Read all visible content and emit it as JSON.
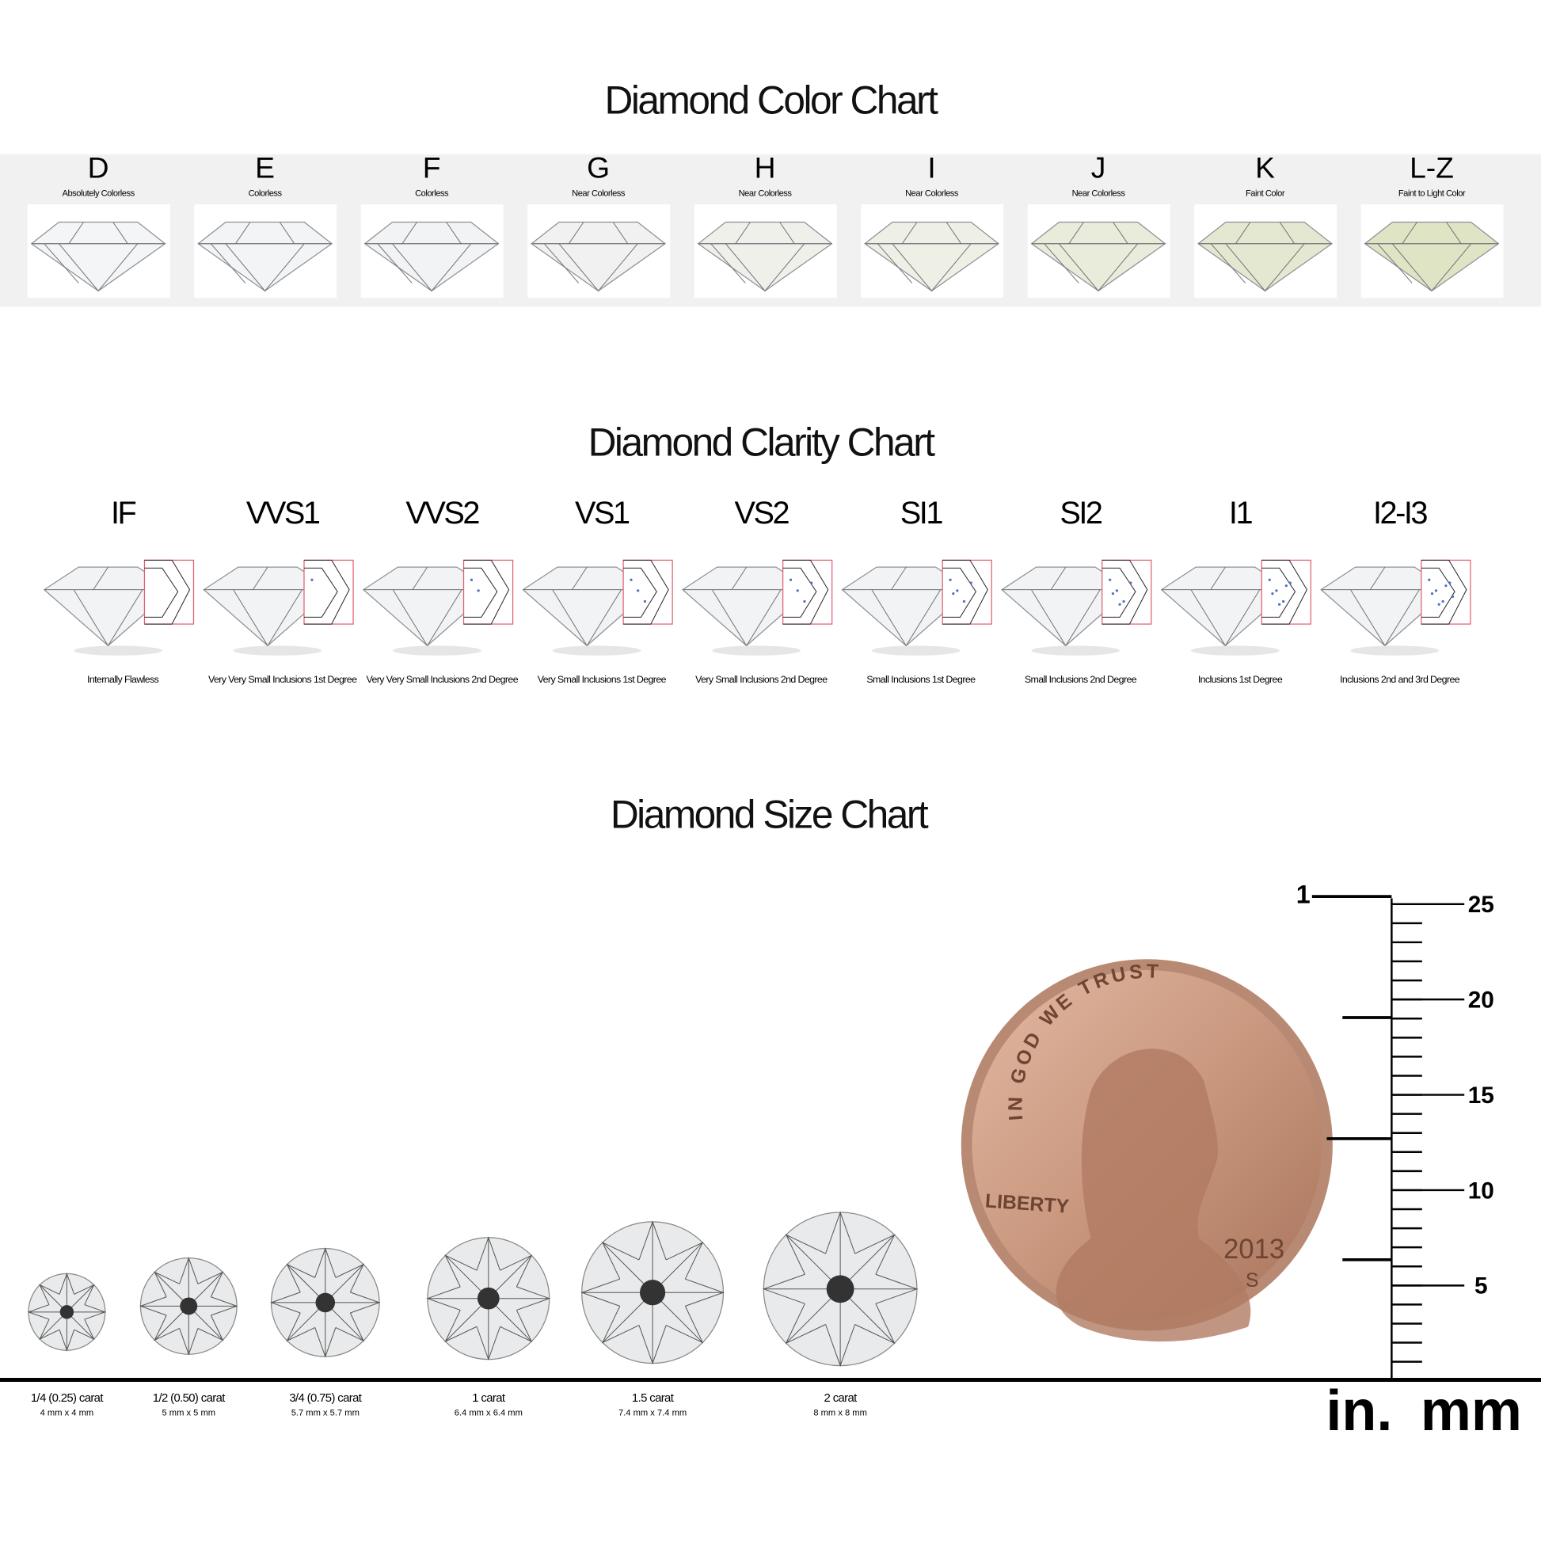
{
  "color_chart": {
    "title": "Diamond Color Chart",
    "grades": [
      {
        "grade": "D",
        "description": "Absolutely Colorless"
      },
      {
        "grade": "E",
        "description": "Colorless"
      },
      {
        "grade": "F",
        "description": "Colorless"
      },
      {
        "grade": "G",
        "description": "Near Colorless"
      },
      {
        "grade": "H",
        "description": "Near Colorless"
      },
      {
        "grade": "I",
        "description": "Near Colorless"
      },
      {
        "grade": "J",
        "description": "Near Colorless"
      },
      {
        "grade": "K",
        "description": "Faint Color"
      },
      {
        "grade": "L-Z",
        "description": "Faint to Light Color"
      }
    ]
  },
  "clarity_chart": {
    "title": "Diamond Clarity Chart",
    "grades": [
      {
        "grade": "IF",
        "description": "Internally Flawless"
      },
      {
        "grade": "VVS1",
        "description": "Very Very Small Inclusions 1st Degree"
      },
      {
        "grade": "VVS2",
        "description": "Very Very Small Inclusions 2nd Degree"
      },
      {
        "grade": "VS1",
        "description": "Very Small Inclusions 1st Degree"
      },
      {
        "grade": "VS2",
        "description": "Very Small Inclusions 2nd Degree"
      },
      {
        "grade": "SI1",
        "description": "Small Inclusions 1st Degree"
      },
      {
        "grade": "SI2",
        "description": "Small Inclusions 2nd Degree"
      },
      {
        "grade": "I1",
        "description": "Inclusions 1st Degree"
      },
      {
        "grade": "I2-I3",
        "description": "Inclusions 2nd and 3rd Degree"
      }
    ]
  },
  "size_chart": {
    "title": "Diamond Size Chart",
    "sizes": [
      {
        "carat": "1/4 (0.25) carat",
        "dimensions": "4 mm x 4 mm"
      },
      {
        "carat": "1/2 (0.50) carat",
        "dimensions": "5 mm x 5 mm"
      },
      {
        "carat": "3/4 (0.75) carat",
        "dimensions": "5.7 mm x 5.7 mm"
      },
      {
        "carat": "1 carat",
        "dimensions": "6.4 mm x 6.4 mm"
      },
      {
        "carat": "1.5 carat",
        "dimensions": "7.4 mm x 7.4 mm"
      },
      {
        "carat": "2 carat",
        "dimensions": "8 mm x 8 mm"
      }
    ],
    "ruler": {
      "inch_ticks": [
        1
      ],
      "mm_ticks": [
        25,
        20,
        15,
        10,
        5
      ],
      "inch_unit": "in.",
      "mm_unit": "mm"
    },
    "penny": {
      "motto": "IN GOD WE TRUST",
      "liberty": "LIBERTY",
      "year": "2013",
      "mint": "S"
    }
  }
}
